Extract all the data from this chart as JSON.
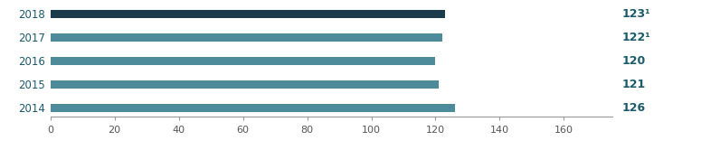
{
  "years": [
    "2018",
    "2017",
    "2016",
    "2015",
    "2014"
  ],
  "values": [
    123,
    122,
    120,
    121,
    126
  ],
  "labels": [
    "123¹",
    "122¹",
    "120",
    "121",
    "126"
  ],
  "bar_color_2018": "#1b3a4b",
  "bar_color_rest": "#4d8b9b",
  "background_color": "#ffffff",
  "xlim": [
    0,
    175
  ],
  "xticks": [
    0,
    20,
    40,
    60,
    80,
    100,
    120,
    140,
    160
  ],
  "label_color": "#1a5a6a",
  "year_color": "#1a5a6a",
  "bar_height": 0.35
}
